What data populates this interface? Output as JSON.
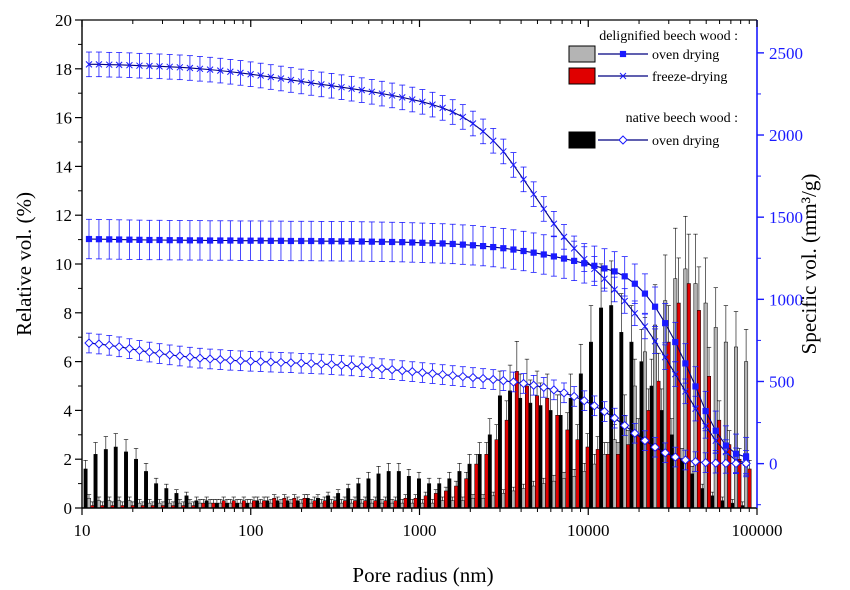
{
  "chart_data": {
    "type": "bar",
    "x_scale": "log",
    "xlim": [
      10,
      100000
    ],
    "ylim_left": [
      0,
      20
    ],
    "ylim_right": [
      -270,
      2700
    ],
    "xlabel": "Pore radius (nm)",
    "ylabel_left": "Relative vol. (%)",
    "ylabel_right": "Specific vol. (mm³/g)",
    "x_ticks": [
      10,
      100,
      1000,
      10000,
      100000
    ],
    "x_tick_labels": [
      "10",
      "100",
      "1000",
      "10000",
      "100000"
    ],
    "y_left_ticks": [
      0,
      2,
      4,
      6,
      8,
      10,
      12,
      14,
      16,
      18,
      20
    ],
    "y_right_ticks": [
      0,
      500,
      1000,
      1500,
      2000,
      2500
    ],
    "legend": {
      "placement": "top-right",
      "group1_header": "delignified beech wood :",
      "group2_header": "native beech wood :",
      "entries": [
        {
          "label": "oven drying",
          "bar_color": "#b4b4b4",
          "line_marker": "square"
        },
        {
          "label": "freeze-drying",
          "bar_color": "#e00000",
          "line_marker": "x"
        },
        {
          "label": "oven drying",
          "bar_color": "#000000",
          "line_marker": "diamond"
        }
      ]
    },
    "colors": {
      "line": "#1a1aff",
      "line_dark": "#000080",
      "native_bar": "#000000",
      "oven_bar": "#b4b4b4",
      "freeze_bar": "#e00000"
    },
    "bar_series": [
      {
        "name": "native beech wood : oven drying",
        "color": "#000000",
        "x": [
          11,
          12.6,
          14.5,
          16.6,
          19.1,
          21.9,
          25.1,
          28.8,
          33.1,
          38,
          43.6,
          50,
          57.4,
          66,
          75.7,
          86.9,
          99.8,
          114.5,
          131.5,
          151,
          173,
          199,
          228,
          262,
          301,
          345,
          396,
          455,
          522,
          599,
          688,
          790,
          906,
          1040,
          1194,
          1371,
          1574,
          1807,
          2074,
          2381,
          2734,
          3139,
          3603,
          4136,
          4748,
          5451,
          6258,
          7184,
          8247,
          9468,
          10870,
          12478,
          14325,
          16446,
          18880,
          21675,
          24883,
          28566,
          32794,
          37648,
          43220,
          49617,
          56961,
          65392,
          75070,
          86181
        ],
        "values": [
          1.6,
          2.2,
          2.4,
          2.5,
          2.3,
          2.0,
          1.5,
          1.0,
          0.8,
          0.6,
          0.5,
          0.3,
          0.3,
          0.2,
          0.2,
          0.2,
          0.2,
          0.3,
          0.3,
          0.3,
          0.3,
          0.3,
          0.4,
          0.4,
          0.5,
          0.6,
          0.8,
          1.0,
          1.2,
          1.4,
          1.5,
          1.5,
          1.3,
          1.2,
          1.0,
          1.0,
          1.2,
          1.5,
          1.8,
          2.2,
          3.0,
          4.6,
          4.8,
          4.5,
          4.3,
          4.2,
          4.0,
          3.8,
          4.5,
          5.5,
          6.8,
          8.2,
          8.3,
          7.2,
          6.8,
          6.0,
          5.0,
          4.0,
          3.0,
          2.0,
          1.4,
          0.8,
          0.5,
          0.3,
          0.2,
          0.1
        ]
      },
      {
        "name": "delignified beech wood : oven drying",
        "color": "#b4b4b4",
        "x": [
          11,
          12.6,
          14.5,
          16.6,
          19.1,
          21.9,
          25.1,
          28.8,
          33.1,
          38,
          43.6,
          50,
          57.4,
          66,
          75.7,
          86.9,
          99.8,
          114.5,
          131.5,
          151,
          173,
          199,
          228,
          262,
          301,
          345,
          396,
          455,
          522,
          599,
          688,
          790,
          906,
          1040,
          1194,
          1371,
          1574,
          1807,
          2074,
          2381,
          2734,
          3139,
          3603,
          4136,
          4748,
          5451,
          6258,
          7184,
          8247,
          9468,
          10870,
          12478,
          14325,
          16446,
          18880,
          21675,
          24883,
          28566,
          32794,
          37648,
          43220,
          49617,
          56961,
          65392,
          75070,
          86181
        ],
        "values": [
          0.4,
          0.3,
          0.3,
          0.3,
          0.3,
          0.2,
          0.2,
          0.2,
          0.2,
          0.2,
          0.2,
          0.2,
          0.2,
          0.2,
          0.2,
          0.2,
          0.2,
          0.2,
          0.2,
          0.2,
          0.2,
          0.2,
          0.2,
          0.2,
          0.2,
          0.2,
          0.2,
          0.2,
          0.2,
          0.2,
          0.2,
          0.2,
          0.2,
          0.2,
          0.2,
          0.3,
          0.3,
          0.3,
          0.4,
          0.4,
          0.5,
          0.6,
          0.7,
          0.8,
          0.9,
          1.0,
          1.1,
          1.2,
          1.3,
          1.5,
          1.8,
          2.2,
          2.8,
          3.8,
          5.0,
          6.4,
          7.5,
          8.5,
          9.4,
          9.8,
          9.2,
          8.4,
          7.4,
          6.8,
          6.6,
          6.0
        ]
      },
      {
        "name": "delignified beech wood : freeze-drying",
        "color": "#e00000",
        "x": [
          11,
          12.6,
          14.5,
          16.6,
          19.1,
          21.9,
          25.1,
          28.8,
          33.1,
          38,
          43.6,
          50,
          57.4,
          66,
          75.7,
          86.9,
          99.8,
          114.5,
          131.5,
          151,
          173,
          199,
          228,
          262,
          301,
          345,
          396,
          455,
          522,
          599,
          688,
          790,
          906,
          1040,
          1194,
          1371,
          1574,
          1807,
          2074,
          2381,
          2734,
          3139,
          3603,
          4136,
          4748,
          5451,
          6258,
          7184,
          8247,
          9468,
          10870,
          12478,
          14325,
          16446,
          18880,
          21675,
          24883,
          28566,
          32794,
          37648,
          43220,
          49617,
          56961,
          65392,
          75070,
          86181
        ],
        "values": [
          0.1,
          0.1,
          0.1,
          0.1,
          0.1,
          0.1,
          0.1,
          0.1,
          0.1,
          0.1,
          0.1,
          0.2,
          0.2,
          0.3,
          0.3,
          0.3,
          0.3,
          0.3,
          0.4,
          0.4,
          0.4,
          0.4,
          0.3,
          0.3,
          0.3,
          0.3,
          0.3,
          0.3,
          0.3,
          0.3,
          0.3,
          0.4,
          0.4,
          0.5,
          0.6,
          0.7,
          0.9,
          1.2,
          1.8,
          2.2,
          2.8,
          3.6,
          5.6,
          5.0,
          4.6,
          4.5,
          3.8,
          3.2,
          2.8,
          2.5,
          2.4,
          2.2,
          2.2,
          2.6,
          3.0,
          4.0,
          5.2,
          6.8,
          8.4,
          9.2,
          8.1,
          5.4,
          3.6,
          2.6,
          2.0,
          1.6
        ]
      }
    ],
    "line_series": [
      {
        "name": "delignified beech wood : freeze-drying",
        "marker": "x",
        "axis": "right",
        "x": [
          11,
          12.6,
          14.5,
          16.6,
          19.1,
          21.9,
          25.1,
          28.8,
          33.1,
          38,
          43.6,
          50,
          57.4,
          66,
          75.7,
          86.9,
          99.8,
          114.5,
          131.5,
          151,
          173,
          199,
          228,
          262,
          301,
          345,
          396,
          455,
          522,
          599,
          688,
          790,
          906,
          1040,
          1194,
          1371,
          1574,
          1807,
          2074,
          2381,
          2734,
          3139,
          3603,
          4136,
          4748,
          5451,
          6258,
          7184,
          8247,
          9468,
          10870,
          12478,
          14325,
          16446,
          18880,
          21675,
          24883,
          28566,
          32794,
          37648,
          43220,
          49617,
          56961,
          65392,
          75070,
          86181
        ],
        "values": [
          2430,
          2430,
          2428,
          2427,
          2425,
          2422,
          2420,
          2418,
          2415,
          2412,
          2408,
          2403,
          2398,
          2392,
          2385,
          2378,
          2370,
          2362,
          2353,
          2344,
          2335,
          2326,
          2317,
          2308,
          2300,
          2291,
          2282,
          2273,
          2263,
          2252,
          2241,
          2229,
          2216,
          2202,
          2185,
          2165,
          2140,
          2110,
          2070,
          2022,
          1965,
          1900,
          1818,
          1730,
          1640,
          1550,
          1460,
          1380,
          1310,
          1245,
          1185,
          1125,
          1060,
          990,
          915,
          835,
          745,
          648,
          545,
          440,
          335,
          230,
          140,
          70,
          20,
          5
        ],
        "error": 75
      },
      {
        "name": "delignified beech wood : oven drying",
        "marker": "square",
        "axis": "right",
        "x": [
          11,
          12.6,
          14.5,
          16.6,
          19.1,
          21.9,
          25.1,
          28.8,
          33.1,
          38,
          43.6,
          50,
          57.4,
          66,
          75.7,
          86.9,
          99.8,
          114.5,
          131.5,
          151,
          173,
          199,
          228,
          262,
          301,
          345,
          396,
          455,
          522,
          599,
          688,
          790,
          906,
          1040,
          1194,
          1371,
          1574,
          1807,
          2074,
          2381,
          2734,
          3139,
          3603,
          4136,
          4748,
          5451,
          6258,
          7184,
          8247,
          9468,
          10870,
          12478,
          14325,
          16446,
          18880,
          21675,
          24883,
          28566,
          32794,
          37648,
          43220,
          49617,
          56961,
          65392,
          75070,
          86181
        ],
        "values": [
          1367,
          1366,
          1365,
          1364,
          1363,
          1362,
          1361,
          1361,
          1360,
          1360,
          1359,
          1359,
          1358,
          1358,
          1358,
          1357,
          1357,
          1357,
          1356,
          1356,
          1355,
          1355,
          1355,
          1354,
          1354,
          1353,
          1353,
          1352,
          1351,
          1350,
          1349,
          1348,
          1346,
          1344,
          1342,
          1340,
          1337,
          1333,
          1329,
          1324,
          1318,
          1311,
          1303,
          1294,
          1284,
          1273,
          1261,
          1248,
          1234,
          1219,
          1204,
          1188,
          1170,
          1140,
          1095,
          1035,
          955,
          855,
          740,
          610,
          470,
          320,
          200,
          110,
          60,
          40
        ],
        "error": 120
      },
      {
        "name": "native beech wood : oven drying",
        "marker": "diamond",
        "axis": "right",
        "x": [
          11,
          12.6,
          14.5,
          16.6,
          19.1,
          21.9,
          25.1,
          28.8,
          33.1,
          38,
          43.6,
          50,
          57.4,
          66,
          75.7,
          86.9,
          99.8,
          114.5,
          131.5,
          151,
          173,
          199,
          228,
          262,
          301,
          345,
          396,
          455,
          522,
          599,
          688,
          790,
          906,
          1040,
          1194,
          1371,
          1574,
          1807,
          2074,
          2381,
          2734,
          3139,
          3603,
          4136,
          4748,
          5451,
          6258,
          7184,
          8247,
          9468,
          10870,
          12478,
          14325,
          16446,
          18880,
          21675,
          24883,
          28566,
          32794,
          37648,
          43220,
          49617,
          56961,
          65392,
          75070,
          86181
        ],
        "values": [
          734,
          728,
          720,
          711,
          700,
          689,
          679,
          670,
          662,
          655,
          648,
          642,
          637,
          633,
          629,
          626,
          623,
          621,
          618,
          616,
          614,
          611,
          609,
          606,
          603,
          599,
          595,
          590,
          584,
          578,
          572,
          566,
          560,
          554,
          548,
          542,
          536,
          530,
          524,
          518,
          512,
          505,
          497,
          488,
          477,
          464,
          449,
          431,
          409,
          383,
          352,
          317,
          277,
          232,
          185,
          140,
          100,
          66,
          40,
          22,
          12,
          6,
          3,
          2,
          1,
          1
        ],
        "error": 60
      }
    ]
  }
}
